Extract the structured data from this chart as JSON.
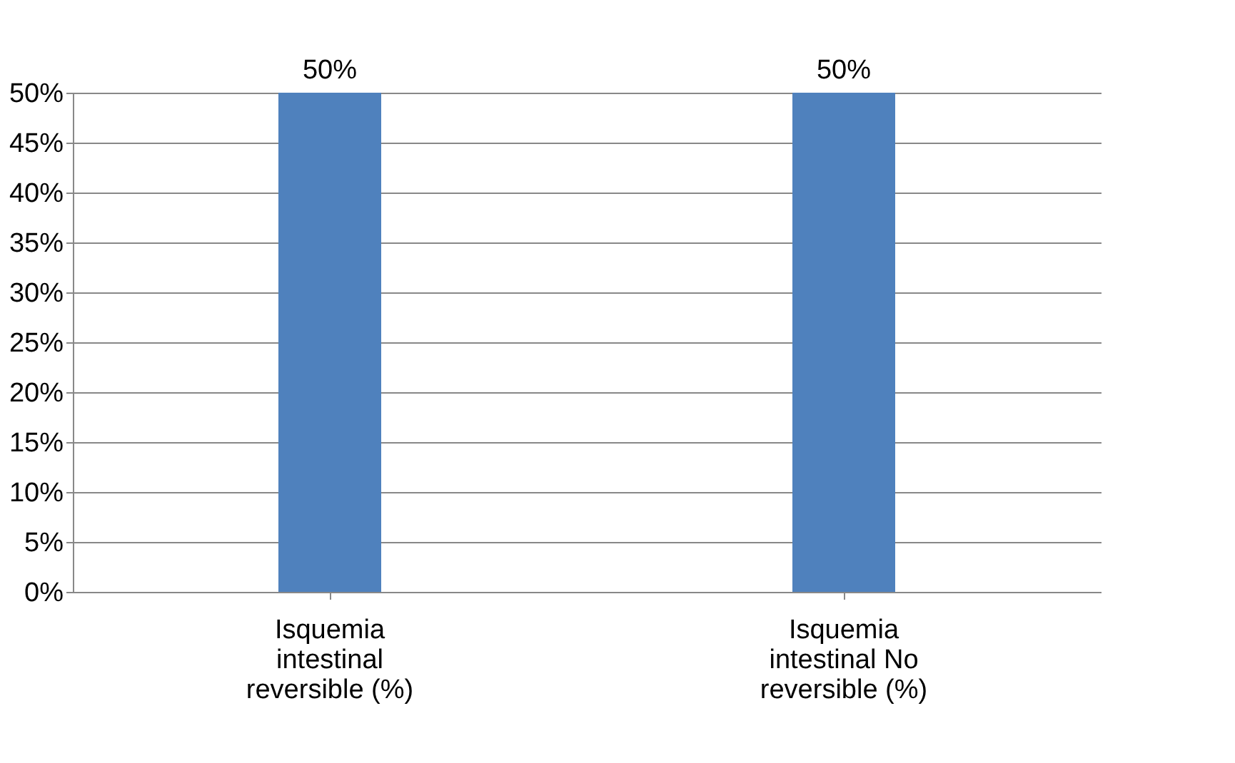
{
  "chart_data": {
    "type": "bar",
    "categories": [
      "Isquemia intestinal reversible (%)",
      "Isquemia intestinal No reversible (%)"
    ],
    "series": [
      {
        "color": "#4f81bd",
        "values": [
          50,
          50
        ],
        "value_labels": [
          "50%",
          "50%"
        ]
      }
    ],
    "ylim": [
      0,
      50
    ],
    "yticks": [
      {
        "value": 0,
        "label": "0%"
      },
      {
        "value": 5,
        "label": "5%"
      },
      {
        "value": 10,
        "label": "10%"
      },
      {
        "value": 15,
        "label": "15%"
      },
      {
        "value": 20,
        "label": "20%"
      },
      {
        "value": 25,
        "label": "25%"
      },
      {
        "value": 30,
        "label": "30%"
      },
      {
        "value": 35,
        "label": "35%"
      },
      {
        "value": 40,
        "label": "40%"
      },
      {
        "value": 45,
        "label": "45%"
      },
      {
        "value": 50,
        "label": "50%"
      }
    ],
    "grid": "y"
  }
}
